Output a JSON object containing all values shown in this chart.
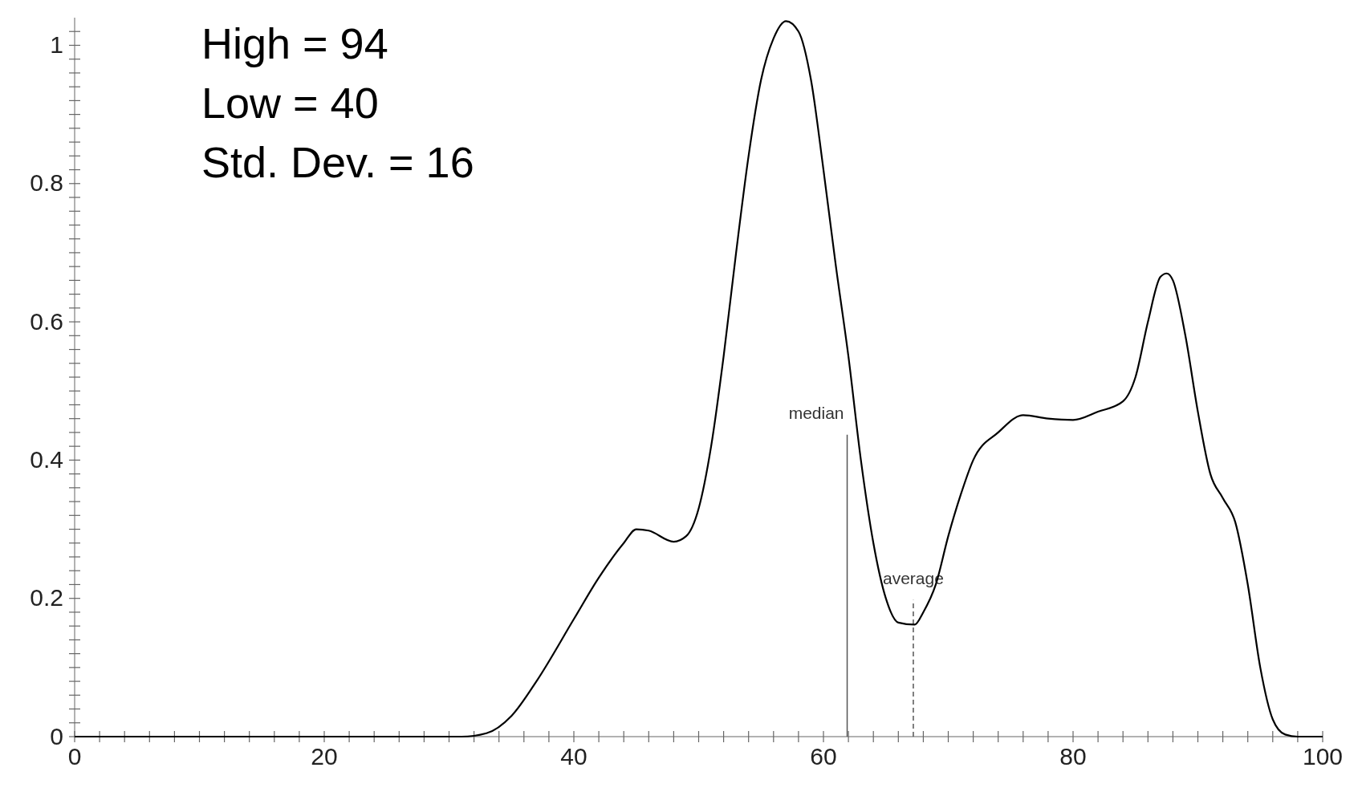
{
  "chart_data": {
    "type": "line",
    "x": [
      0,
      10,
      20,
      30,
      31,
      33,
      35,
      37,
      40,
      42,
      44,
      45,
      46,
      48,
      49,
      50,
      51,
      52,
      53,
      54,
      55,
      56,
      57,
      58,
      59,
      60,
      61,
      62,
      63,
      64,
      65,
      66,
      67.3,
      68,
      69,
      70,
      71,
      72,
      74,
      76,
      78,
      80,
      82,
      84,
      85,
      86,
      87,
      87.5,
      88,
      89,
      90,
      91,
      92,
      93,
      94,
      95,
      96,
      97,
      98,
      100
    ],
    "series": [
      {
        "color": "#000000",
        "values": [
          0,
          0,
          0,
          0,
          0,
          0.005,
          0.03,
          0.08,
          0.17,
          0.23,
          0.28,
          0.3,
          0.298,
          0.282,
          0.29,
          0.33,
          0.42,
          0.55,
          0.7,
          0.84,
          0.95,
          1.01,
          1.035,
          1.02,
          0.95,
          0.82,
          0.68,
          0.55,
          0.4,
          0.28,
          0.2,
          0.165,
          0.162,
          0.18,
          0.22,
          0.29,
          0.35,
          0.4,
          0.44,
          0.465,
          0.46,
          0.458,
          0.47,
          0.485,
          0.52,
          0.6,
          0.665,
          0.67,
          0.66,
          0.58,
          0.47,
          0.38,
          0.345,
          0.31,
          0.22,
          0.1,
          0.025,
          0.003,
          0,
          0
        ]
      }
    ],
    "xlim": [
      0,
      100
    ],
    "ylim": [
      0,
      1.04
    ],
    "xticks": [
      0,
      {
        "value": 2,
        "label": null
      },
      {
        "value": 4,
        "label": null
      },
      {
        "value": 6,
        "label": null
      },
      {
        "value": 8,
        "label": null
      },
      {
        "value": 10,
        "label": null
      },
      {
        "value": 12,
        "label": null
      },
      {
        "value": 14,
        "label": null
      },
      {
        "value": 16,
        "label": null
      },
      {
        "value": 18,
        "label": null
      },
      20,
      {
        "value": 22,
        "label": null
      },
      {
        "value": 24,
        "label": null
      },
      {
        "value": 26,
        "label": null
      },
      {
        "value": 28,
        "label": null
      },
      {
        "value": 30,
        "label": null
      },
      {
        "value": 32,
        "label": null
      },
      {
        "value": 34,
        "label": null
      },
      {
        "value": 36,
        "label": null
      },
      {
        "value": 38,
        "label": null
      },
      40,
      {
        "value": 42,
        "label": null
      },
      {
        "value": 44,
        "label": null
      },
      {
        "value": 46,
        "label": null
      },
      {
        "value": 48,
        "label": null
      },
      {
        "value": 50,
        "label": null
      },
      {
        "value": 52,
        "label": null
      },
      {
        "value": 54,
        "label": null
      },
      {
        "value": 56,
        "label": null
      },
      {
        "value": 58,
        "label": null
      },
      60,
      {
        "value": 62,
        "label": null
      },
      {
        "value": 64,
        "label": null
      },
      {
        "value": 66,
        "label": null
      },
      {
        "value": 68,
        "label": null
      },
      {
        "value": 70,
        "label": null
      },
      {
        "value": 72,
        "label": null
      },
      {
        "value": 74,
        "label": null
      },
      {
        "value": 76,
        "label": null
      },
      {
        "value": 78,
        "label": null
      },
      80,
      {
        "value": 82,
        "label": null
      },
      {
        "value": 84,
        "label": null
      },
      {
        "value": 86,
        "label": null
      },
      {
        "value": 88,
        "label": null
      },
      {
        "value": 90,
        "label": null
      },
      {
        "value": 92,
        "label": null
      },
      {
        "value": 94,
        "label": null
      },
      {
        "value": 96,
        "label": null
      },
      {
        "value": 98,
        "label": null
      },
      100
    ],
    "yticks": [
      0,
      {
        "value": 0.02,
        "label": null
      },
      {
        "value": 0.04,
        "label": null
      },
      {
        "value": 0.06,
        "label": null
      },
      {
        "value": 0.08,
        "label": null
      },
      {
        "value": 0.1,
        "label": null
      },
      {
        "value": 0.12,
        "label": null
      },
      {
        "value": 0.14,
        "label": null
      },
      {
        "value": 0.16,
        "label": null
      },
      {
        "value": 0.18,
        "label": null
      },
      0.2,
      {
        "value": 0.22,
        "label": null
      },
      {
        "value": 0.24,
        "label": null
      },
      {
        "value": 0.26,
        "label": null
      },
      {
        "value": 0.28,
        "label": null
      },
      {
        "value": 0.3,
        "label": null
      },
      {
        "value": 0.32,
        "label": null
      },
      {
        "value": 0.34,
        "label": null
      },
      {
        "value": 0.36,
        "label": null
      },
      {
        "value": 0.38,
        "label": null
      },
      0.4,
      {
        "value": 0.42,
        "label": null
      },
      {
        "value": 0.44,
        "label": null
      },
      {
        "value": 0.46,
        "label": null
      },
      {
        "value": 0.48,
        "label": null
      },
      {
        "value": 0.5,
        "label": null
      },
      {
        "value": 0.52,
        "label": null
      },
      {
        "value": 0.54,
        "label": null
      },
      {
        "value": 0.56,
        "label": null
      },
      {
        "value": 0.58,
        "label": null
      },
      0.6,
      {
        "value": 0.62,
        "label": null
      },
      {
        "value": 0.64,
        "label": null
      },
      {
        "value": 0.66,
        "label": null
      },
      {
        "value": 0.68,
        "label": null
      },
      {
        "value": 0.7,
        "label": null
      },
      {
        "value": 0.72,
        "label": null
      },
      {
        "value": 0.74,
        "label": null
      },
      {
        "value": 0.76,
        "label": null
      },
      {
        "value": 0.78,
        "label": null
      },
      0.8,
      {
        "value": 0.82,
        "label": null
      },
      {
        "value": 0.84,
        "label": null
      },
      {
        "value": 0.86,
        "label": null
      },
      {
        "value": 0.88,
        "label": null
      },
      {
        "value": 0.9,
        "label": null
      },
      {
        "value": 0.92,
        "label": null
      },
      {
        "value": 0.94,
        "label": null
      },
      {
        "value": 0.96,
        "label": null
      },
      {
        "value": 0.98,
        "label": null
      },
      1,
      {
        "value": 1.02,
        "label": null
      }
    ],
    "ref_lines": [
      {
        "axis": "x",
        "value": 61.9,
        "label": "median",
        "color": "#555555",
        "line_style": "solid"
      },
      {
        "axis": "x",
        "value": 67.2,
        "label": "average",
        "color": "#555555",
        "line_style": "dashed"
      }
    ],
    "annotations": [
      "High = 94",
      "Low = 40",
      "Std. Dev. = 16"
    ],
    "grid": false,
    "marker": "none",
    "line_style": "solid"
  }
}
